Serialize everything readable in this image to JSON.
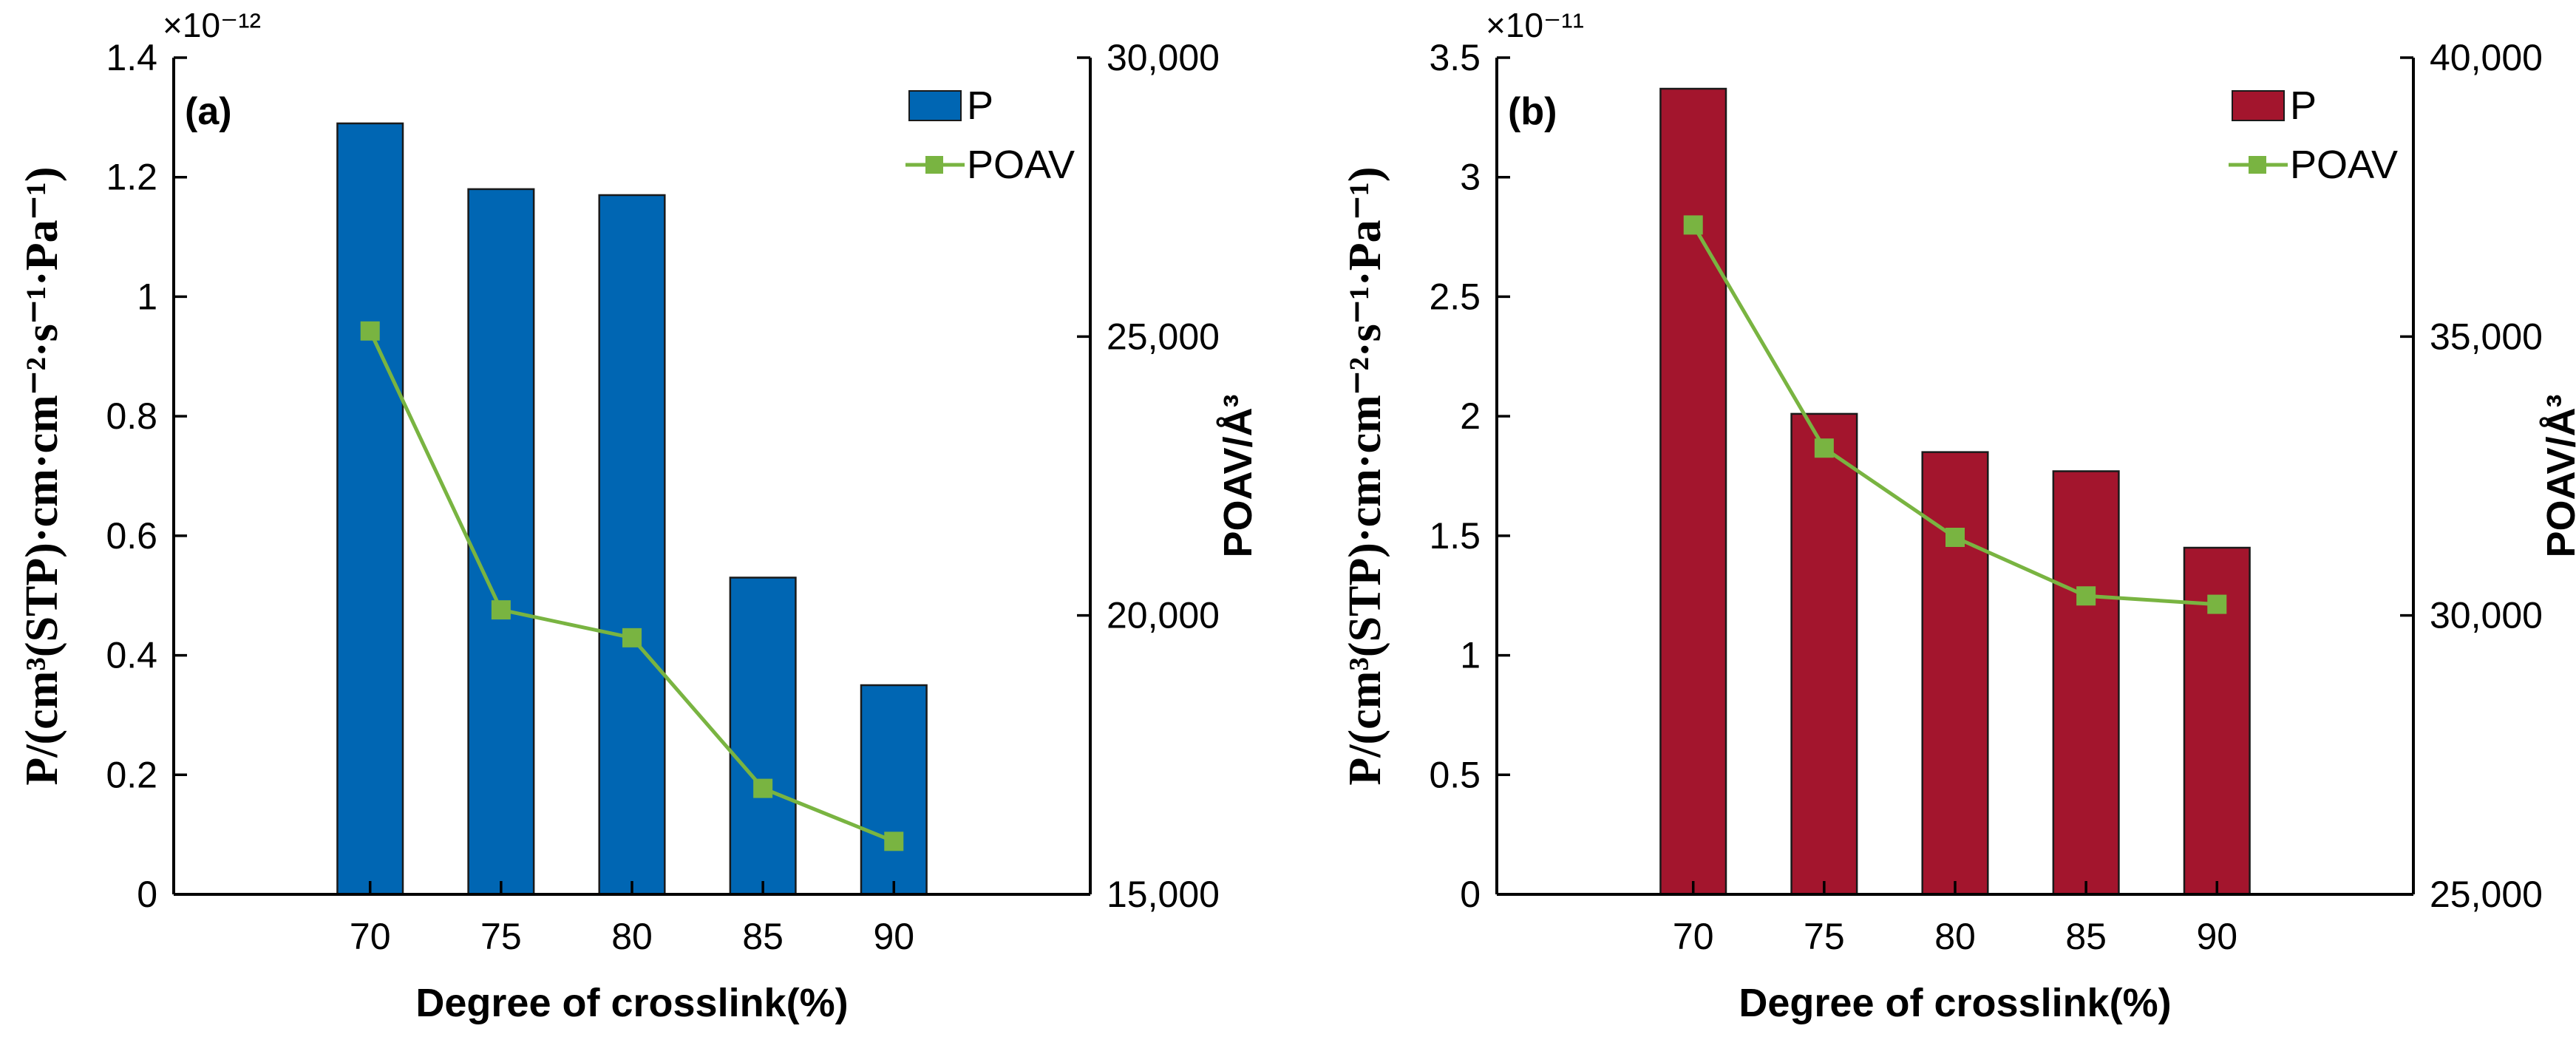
{
  "chart_data": [
    {
      "type": "bar",
      "panel_label": "(a)",
      "categories": [
        "70",
        "75",
        "80",
        "85",
        "90"
      ],
      "xlabel": "Degree of crosslink(%)",
      "ylabel": "P/(cm³(STP)·cm·cm⁻²·s⁻¹·Pa⁻¹)",
      "y_exponent": "×10⁻¹²",
      "y2label": "POAV/Å³",
      "ylim": [
        0,
        1.4
      ],
      "yticks": [
        0,
        0.2,
        0.4,
        0.6,
        0.8,
        1,
        1.2,
        1.4
      ],
      "ytick_labels": [
        "0",
        "0.2",
        "0.4",
        "0.6",
        "0.8",
        "1",
        "1.2",
        "1.4"
      ],
      "y2lim": [
        15000,
        30000
      ],
      "y2ticks": [
        15000,
        20000,
        25000,
        30000
      ],
      "y2tick_labels": [
        "15,000",
        "20,000",
        "25,000",
        "30,000"
      ],
      "legend_position": "top-right",
      "series": [
        {
          "name": "P",
          "kind": "bar",
          "axis": "left",
          "color": "#0066b3",
          "values": [
            1.29,
            1.18,
            1.17,
            0.53,
            0.35
          ]
        },
        {
          "name": "POAV",
          "kind": "line",
          "axis": "right",
          "color": "#79b441",
          "values": [
            25100,
            20100,
            19600,
            16900,
            15950
          ]
        }
      ]
    },
    {
      "type": "bar",
      "panel_label": "(b)",
      "categories": [
        "70",
        "75",
        "80",
        "85",
        "90"
      ],
      "xlabel": "Degree of crosslink(%)",
      "ylabel": "P/(cm³(STP)·cm·cm⁻²·s⁻¹·Pa⁻¹)",
      "y_exponent": "×10⁻¹¹",
      "y2label": "POAV/Å³",
      "ylim": [
        0,
        3.5
      ],
      "yticks": [
        0,
        0.5,
        1,
        1.5,
        2,
        2.5,
        3,
        3.5
      ],
      "ytick_labels": [
        "0",
        "0.5",
        "1",
        "1.5",
        "2",
        "2.5",
        "3",
        "3.5"
      ],
      "y2lim": [
        25000,
        40000
      ],
      "y2ticks": [
        25000,
        30000,
        35000,
        40000
      ],
      "y2tick_labels": [
        "25,000",
        "30,000",
        "35,000",
        "40,000"
      ],
      "legend_position": "top-right",
      "series": [
        {
          "name": "P",
          "kind": "bar",
          "axis": "left",
          "color": "#a3152d",
          "values": [
            3.37,
            2.01,
            1.85,
            1.77,
            1.45
          ]
        },
        {
          "name": "POAV",
          "kind": "line",
          "axis": "right",
          "color": "#79b441",
          "values": [
            37000,
            33000,
            31400,
            30350,
            30200
          ]
        }
      ]
    }
  ]
}
